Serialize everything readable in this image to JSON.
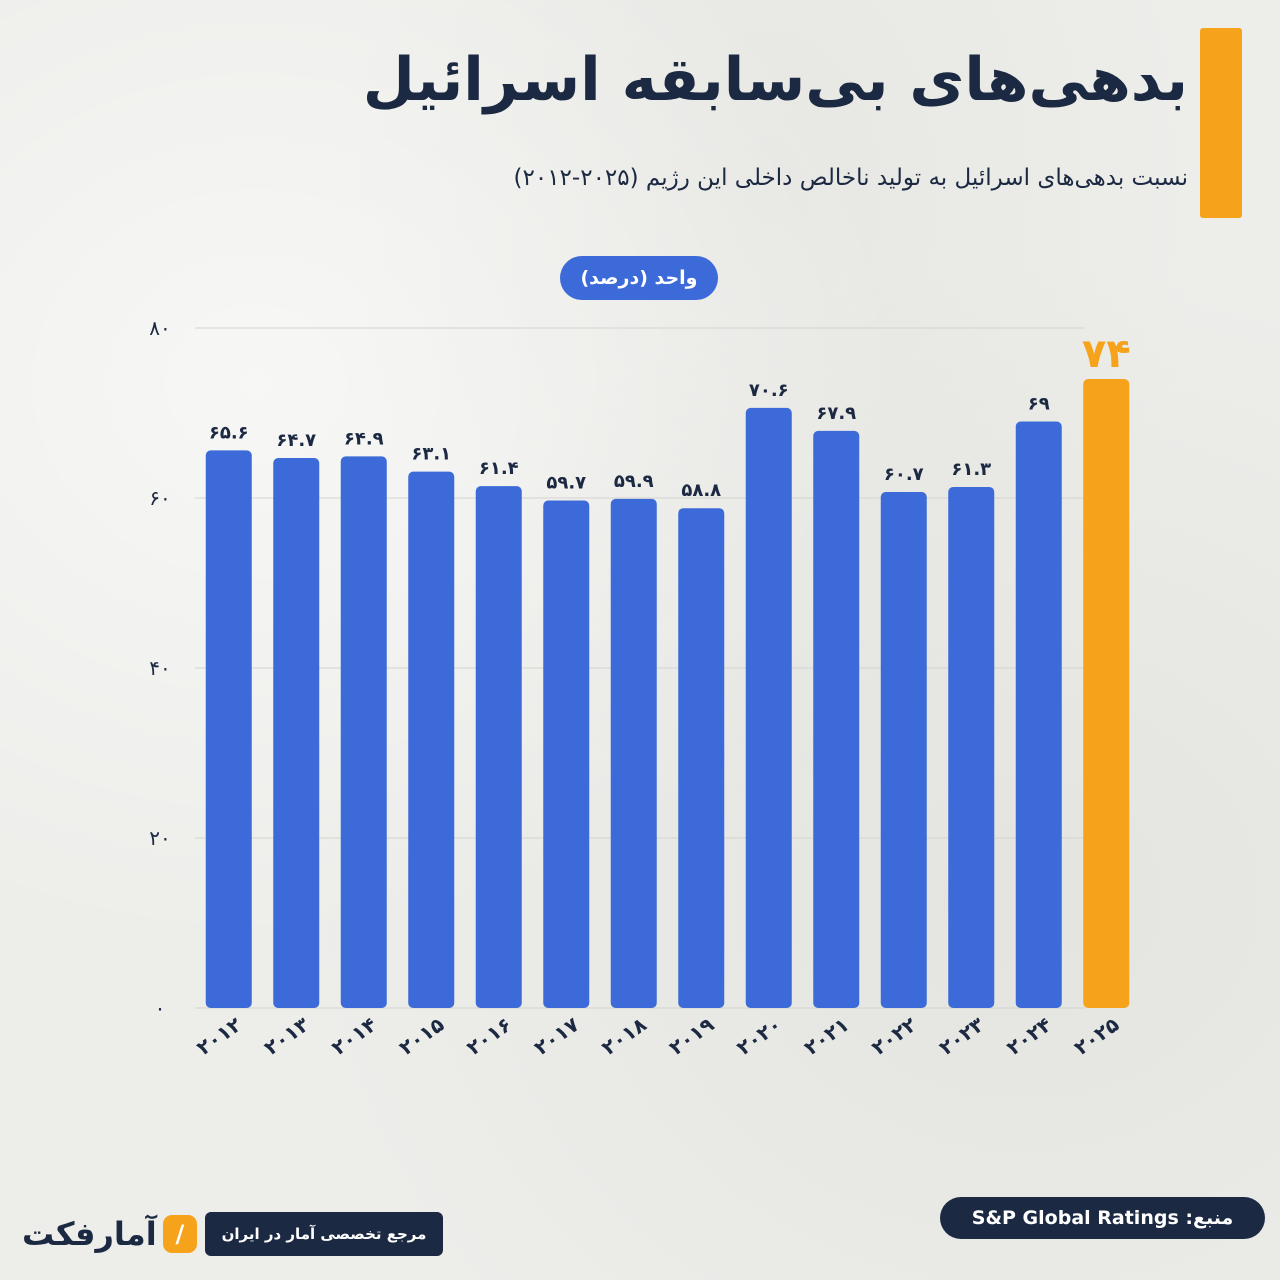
{
  "header": {
    "title": "بدهی‌های بی‌سابقه اسرائیل",
    "subtitle": "نسبت بدهی‌های اسرائیل به تولید ناخالص داخلی این رژیم (۲۰۲۵-۲۰۱۲)",
    "unit": "واحد (درصد)"
  },
  "chart_data": {
    "type": "bar",
    "categories": [
      "۲۰۱۲",
      "۲۰۱۳",
      "۲۰۱۴",
      "۲۰۱۵",
      "۲۰۱۶",
      "۲۰۱۷",
      "۲۰۱۸",
      "۲۰۱۹",
      "۲۰۲۰",
      "۲۰۲۱",
      "۲۰۲۲",
      "۲۰۲۳",
      "۲۰۲۴",
      "۲۰۲۵"
    ],
    "values": [
      65.6,
      64.7,
      64.9,
      63.1,
      61.4,
      59.7,
      59.9,
      58.8,
      70.6,
      67.9,
      60.7,
      61.3,
      69,
      74
    ],
    "value_labels": [
      "۶۵.۶",
      "۶۴.۷",
      "۶۴.۹",
      "۶۳.۱",
      "۶۱.۴",
      "۵۹.۷",
      "۵۹.۹",
      "۵۸.۸",
      "۷۰.۶",
      "۶۷.۹",
      "۶۰.۷",
      "۶۱.۳",
      "۶۹",
      "۷۴"
    ],
    "highlight_index": 13,
    "ylim": [
      0,
      80
    ],
    "yticks": [
      0,
      20,
      40,
      60,
      80
    ],
    "ytick_labels": [
      "۰",
      "۲۰",
      "۴۰",
      "۶۰",
      "۸۰"
    ],
    "grid": true,
    "colors": {
      "bar": "#3c6ad8",
      "highlight": "#f7a21b",
      "text": "#1c2942",
      "grid": "#d3d3cf"
    }
  },
  "footer": {
    "source": "منبع: S&P Global Ratings",
    "tagline": "مرجع تخصصی آمار در ایران",
    "logo_text": "آمارفکت",
    "logo_icon": "chart-slash-icon"
  }
}
